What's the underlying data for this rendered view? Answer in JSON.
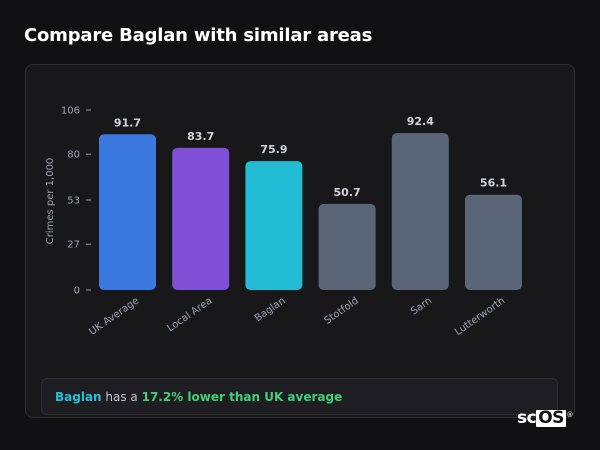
{
  "page": {
    "title": "Compare Baglan with similar areas"
  },
  "chart_data": {
    "type": "bar",
    "categories": [
      "UK Average",
      "Local Area",
      "Baglan",
      "Stotfold",
      "Sarn",
      "Lutterworth"
    ],
    "values": [
      91.7,
      83.7,
      75.9,
      50.7,
      92.4,
      56.1
    ],
    "value_labels": [
      "91.7",
      "83.7",
      "75.9",
      "50.7",
      "92.4",
      "56.1"
    ],
    "colors": [
      "#3a78de",
      "#7f4fd6",
      "#22bcd4",
      "#5a6577",
      "#5a6577",
      "#5a6577"
    ],
    "title": "",
    "xlabel": "",
    "ylabel": "Crimes per 1,000",
    "ylim": [
      0,
      106
    ],
    "yticks": [
      0,
      27,
      53,
      80,
      106
    ],
    "grid": false
  },
  "summary": {
    "area": "Baglan",
    "pre": " has a ",
    "comparison": "17.2% lower than UK average"
  },
  "logo": {
    "prefix": "sc",
    "box": "OS",
    "mark": "®"
  },
  "colors": {
    "background": "#111113",
    "card": "#18181b",
    "axis_text": "#9ca3af",
    "value_text": "#d1d5db"
  }
}
